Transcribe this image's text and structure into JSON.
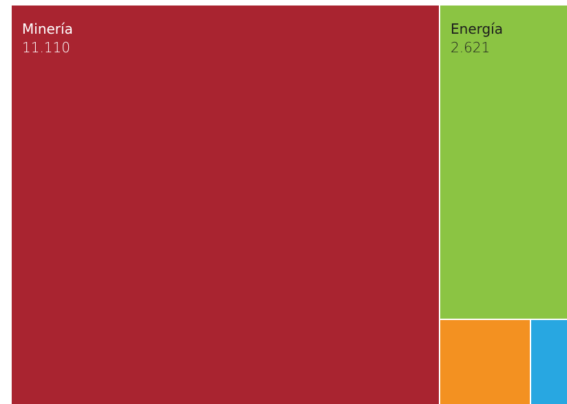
{
  "chart_data": {
    "type": "treemap",
    "items": [
      {
        "name": "Minería",
        "value_label": "11.110",
        "value": 11110,
        "color": "#A92430",
        "text_color": "#ffffff"
      },
      {
        "name": "Energía",
        "value_label": "2.621",
        "value": 2621,
        "color": "#8BC443",
        "text_color": "#1d1d1d"
      },
      {
        "name": "",
        "value_label": "",
        "color": "#F39121",
        "text_color": "#1d1d1d"
      },
      {
        "name": "",
        "value_label": "",
        "color": "#28A7E1",
        "text_color": "#1d1d1d"
      }
    ]
  }
}
